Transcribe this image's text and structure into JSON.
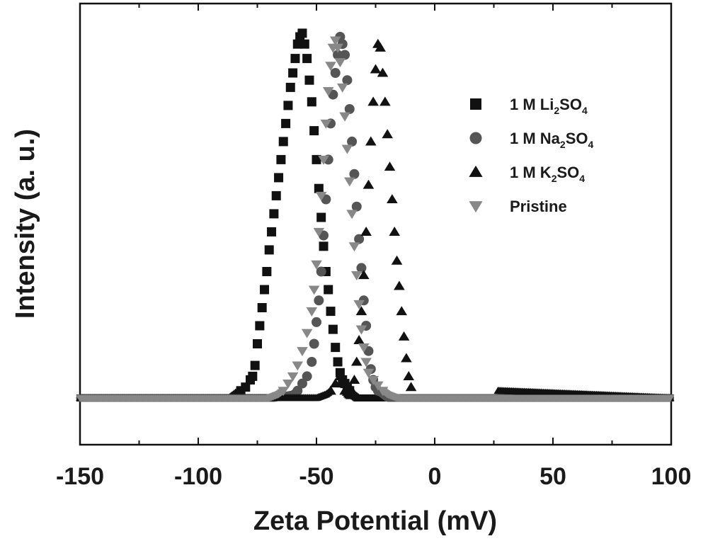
{
  "chart_data": {
    "type": "scatter",
    "xlabel": "Zeta Potential (mV)",
    "ylabel": "Intensity (a. u.)",
    "xlim": [
      -150,
      100
    ],
    "ylim": [
      -0.05,
      1.0
    ],
    "y_ticks_labeled": false,
    "x_ticks": [
      "-150",
      "-100",
      "-50",
      "0",
      "50",
      "100"
    ],
    "legend_position": "top-right",
    "grid": false,
    "series": [
      {
        "name": "1 M Li2SO4",
        "legend": {
          "pre": "1 M Li",
          "sub1": "2",
          "mid": "SO",
          "sub2": "4"
        },
        "marker": "square",
        "color": "#111111",
        "x": [
          -150,
          -86,
          -84,
          -82,
          -80,
          -78,
          -77,
          -76,
          -75,
          -74,
          -73,
          -72,
          -71,
          -70,
          -69,
          -68,
          -67,
          -66,
          -65,
          -64,
          -63,
          -62,
          -61,
          -60,
          -59,
          -58,
          -57,
          -56,
          -55,
          -54,
          -53,
          -52,
          -51,
          -50,
          -49,
          -48,
          -47,
          -46,
          -45,
          -44,
          -43,
          -42,
          -41,
          -40,
          -39,
          -38,
          -37,
          -36,
          -35,
          -34,
          -33,
          -32,
          -31,
          -30,
          -28,
          -26,
          -24,
          100
        ],
        "y": [
          0.0,
          0.0,
          0.01,
          0.02,
          0.03,
          0.05,
          0.06,
          0.09,
          0.15,
          0.2,
          0.25,
          0.3,
          0.35,
          0.41,
          0.46,
          0.51,
          0.56,
          0.61,
          0.66,
          0.71,
          0.76,
          0.81,
          0.86,
          0.9,
          0.94,
          0.98,
          1.0,
          1.01,
          0.98,
          0.94,
          0.88,
          0.82,
          0.74,
          0.66,
          0.58,
          0.5,
          0.42,
          0.35,
          0.3,
          0.24,
          0.19,
          0.14,
          0.1,
          0.07,
          0.05,
          0.04,
          0.03,
          0.02,
          0.01,
          0.005,
          0.0,
          0.0,
          0.0,
          0.0,
          0.0,
          0.0,
          0.0,
          0.0
        ]
      },
      {
        "name": "1 M Na2SO4",
        "legend": {
          "pre": "1 M Na",
          "sub1": "2",
          "mid": "SO",
          "sub2": "4"
        },
        "marker": "circle",
        "color": "#555555",
        "x": [
          -150,
          -68,
          -64,
          -60,
          -58,
          -56,
          -54,
          -52,
          -51,
          -50,
          -49,
          -48,
          -47,
          -46,
          -45,
          -44,
          -43,
          -42,
          -41,
          -40,
          -39,
          -38,
          -37,
          -36,
          -35,
          -34,
          -33,
          -32,
          -31,
          -30,
          -29,
          -28,
          -27,
          -26,
          -25,
          -24,
          -22,
          -20,
          100
        ],
        "y": [
          0.0,
          0.0,
          0.005,
          0.01,
          0.02,
          0.04,
          0.06,
          0.1,
          0.15,
          0.21,
          0.27,
          0.35,
          0.45,
          0.55,
          0.66,
          0.76,
          0.84,
          0.9,
          0.95,
          1.0,
          0.98,
          0.95,
          0.88,
          0.8,
          0.71,
          0.62,
          0.53,
          0.44,
          0.36,
          0.27,
          0.2,
          0.13,
          0.08,
          0.05,
          0.03,
          0.02,
          0.01,
          0.0,
          0.0
        ]
      },
      {
        "name": "1 M K2SO4",
        "legend": {
          "pre": "1 M K",
          "sub1": "2",
          "mid": "SO",
          "sub2": "4"
        },
        "marker": "triangle-up",
        "color": "#111111",
        "x": [
          -150,
          -70,
          -66,
          -62,
          -58,
          -54,
          -50,
          -46,
          -44,
          -42,
          -40,
          -39,
          -38,
          -37,
          -36,
          -35,
          -34,
          -33,
          -32,
          -31,
          -30,
          -29,
          -28,
          -27,
          -26,
          -25,
          -24,
          -23,
          -22,
          -21,
          -20,
          -19,
          -18,
          -17,
          -16,
          -15,
          -14,
          -13,
          -12,
          -11,
          -10,
          100
        ],
        "y": [
          0.0,
          0.0,
          0.0,
          0.0,
          0.0,
          0.0,
          0.0,
          0.01,
          0.02,
          0.04,
          0.06,
          0.04,
          0.02,
          0.01,
          0.005,
          0.02,
          0.05,
          0.1,
          0.16,
          0.24,
          0.34,
          0.46,
          0.59,
          0.71,
          0.82,
          0.91,
          0.98,
          0.97,
          0.9,
          0.82,
          0.73,
          0.64,
          0.55,
          0.46,
          0.38,
          0.31,
          0.24,
          0.17,
          0.11,
          0.06,
          0.03,
          0.0
        ]
      },
      {
        "name": "Pristine",
        "legend": {
          "pre": "Pristine",
          "sub1": "",
          "mid": "",
          "sub2": ""
        },
        "marker": "triangle-down",
        "color": "#888888",
        "x": [
          -150,
          -70,
          -68,
          -66,
          -64,
          -62,
          -60,
          -58,
          -56,
          -54,
          -52,
          -51,
          -50,
          -49,
          -48,
          -47,
          -46,
          -45,
          -44,
          -43,
          -42,
          -41,
          -40,
          -39,
          -38,
          -37,
          -36,
          -35,
          -34,
          -33,
          -32,
          -31,
          -30,
          -29,
          -28,
          -26,
          -24,
          -22,
          -20,
          -18,
          -16,
          100
        ],
        "y": [
          0.0,
          0.0,
          0.005,
          0.01,
          0.02,
          0.04,
          0.06,
          0.09,
          0.13,
          0.18,
          0.24,
          0.3,
          0.37,
          0.46,
          0.56,
          0.66,
          0.76,
          0.85,
          0.92,
          0.97,
          0.99,
          0.97,
          0.93,
          0.86,
          0.78,
          0.69,
          0.6,
          0.51,
          0.42,
          0.34,
          0.26,
          0.19,
          0.14,
          0.1,
          0.07,
          0.05,
          0.035,
          0.02,
          0.01,
          0.005,
          0.0,
          0.0
        ]
      }
    ]
  }
}
